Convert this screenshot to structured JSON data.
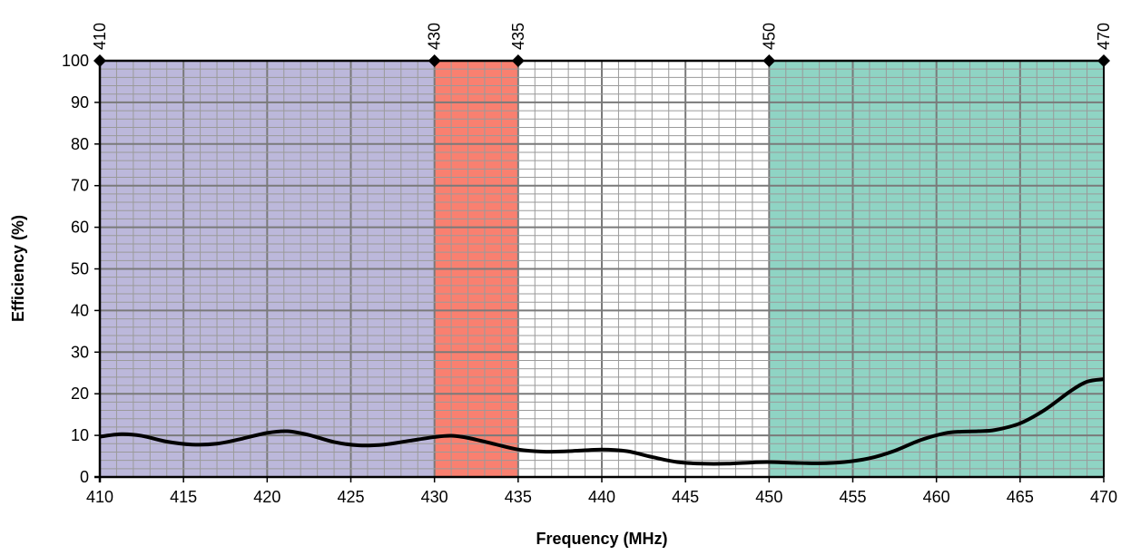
{
  "chart_data": {
    "type": "line",
    "xlabel": "Frequency (MHz)",
    "ylabel": "Efficiency (%)",
    "xlim": [
      410,
      470
    ],
    "ylim": [
      0,
      100
    ],
    "x_major_step": 5,
    "x_minor_step": 1,
    "y_major_step": 10,
    "y_minor_step": 2,
    "x_ticks": [
      "410",
      "415",
      "420",
      "425",
      "430",
      "435",
      "440",
      "445",
      "450",
      "455",
      "460",
      "465",
      "470"
    ],
    "y_ticks": [
      "0",
      "10",
      "20",
      "30",
      "40",
      "50",
      "60",
      "70",
      "80",
      "90",
      "100"
    ],
    "bands": [
      {
        "from": 410,
        "to": 430,
        "color": "#bcb8db"
      },
      {
        "from": 430,
        "to": 435,
        "color": "#f98070"
      },
      {
        "from": 435,
        "to": 450,
        "color": "#ffffff"
      },
      {
        "from": 450,
        "to": 470,
        "color": "#8fd4c4"
      }
    ],
    "band_markers": [
      {
        "x": 410,
        "label": "410"
      },
      {
        "x": 430,
        "label": "430"
      },
      {
        "x": 435,
        "label": "435"
      },
      {
        "x": 450,
        "label": "450"
      },
      {
        "x": 470,
        "label": "470"
      }
    ],
    "grid": true,
    "series": [
      {
        "color": "#000000",
        "x": [
          410,
          411.3,
          412.5,
          414,
          415.5,
          417,
          418.5,
          420,
          421.2,
          422.5,
          424,
          425.5,
          427,
          428.5,
          430,
          431,
          432,
          433.5,
          435,
          436.5,
          438,
          440,
          441.5,
          443,
          444.5,
          446,
          447.5,
          449,
          450,
          451.5,
          453,
          454.5,
          456,
          457.5,
          459,
          460.5,
          461.5,
          462.5,
          463.5,
          465,
          466.5,
          468,
          469,
          470
        ],
        "y": [
          9.7,
          10.3,
          9.9,
          8.5,
          7.8,
          8.0,
          9.2,
          10.6,
          11.0,
          10.1,
          8.4,
          7.6,
          7.8,
          8.7,
          9.6,
          9.9,
          9.4,
          8.0,
          6.6,
          6.1,
          6.2,
          6.6,
          6.2,
          4.8,
          3.6,
          3.2,
          3.2,
          3.5,
          3.6,
          3.4,
          3.3,
          3.6,
          4.5,
          6.3,
          8.8,
          10.5,
          10.9,
          11.0,
          11.3,
          12.9,
          16.2,
          20.6,
          22.9,
          23.5
        ]
      }
    ]
  }
}
